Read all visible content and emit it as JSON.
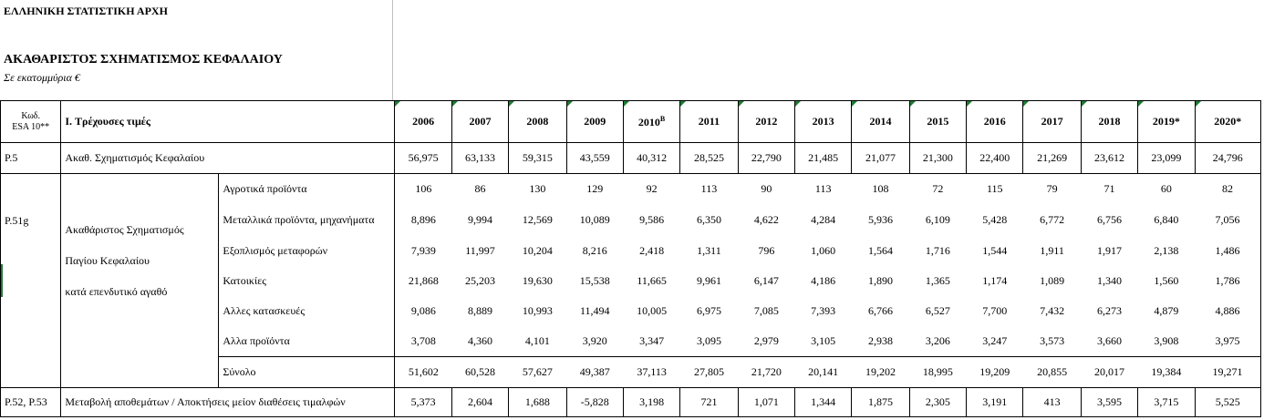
{
  "header": {
    "org": "ΕΛΛΗΝΙΚΗ ΣΤΑΤΙΣΤΙΚΗ ΑΡΧΗ",
    "title": "ΑΚΑΘΑΡΙΣΤΟΣ ΣΧΗΜΑΤΙΣΜΟΣ ΚΕΦΑΛΑΙΟΥ",
    "subtitle": "Σε εκατομμύρια €"
  },
  "table": {
    "code_header_1": "Κωδ.",
    "code_header_2": "ESA 10**",
    "section_header": "I. Τρέχουσες τιμές",
    "years": [
      "2006",
      "2007",
      "2008",
      "2009",
      "2010",
      "2011",
      "2012",
      "2013",
      "2014",
      "2015",
      "2016",
      "2017",
      "2018",
      "2019*",
      "2020*"
    ],
    "year_2010_sup": "B",
    "p5": {
      "code": "P.5",
      "label": "Ακαθ. Σχηματισμός Κεφαλαίου",
      "values": [
        "56,975",
        "63,133",
        "59,315",
        "43,559",
        "40,312",
        "28,525",
        "22,790",
        "21,485",
        "21,077",
        "21,300",
        "22,400",
        "21,269",
        "23,612",
        "23,099",
        "24,796"
      ]
    },
    "p51g": {
      "code": "P.51g",
      "group_label_1": "Ακαθάριστος Σχηματισμός",
      "group_label_2": "Παγίου Κεφαλαίου",
      "group_label_3": "κατά επενδυτικό αγαθό",
      "rows": [
        {
          "label": "Αγροτικά προϊόντα",
          "values": [
            "106",
            "86",
            "130",
            "129",
            "92",
            "113",
            "90",
            "113",
            "108",
            "72",
            "115",
            "79",
            "71",
            "60",
            "82"
          ]
        },
        {
          "label": "Μεταλλικά προϊόντα, μηχανήματα",
          "values": [
            "8,896",
            "9,994",
            "12,569",
            "10,089",
            "9,586",
            "6,350",
            "4,622",
            "4,284",
            "5,936",
            "6,109",
            "5,428",
            "6,772",
            "6,756",
            "6,840",
            "7,056"
          ]
        },
        {
          "label": "Εξοπλισμός μεταφορών",
          "values": [
            "7,939",
            "11,997",
            "10,204",
            "8,216",
            "2,418",
            "1,311",
            "796",
            "1,060",
            "1,564",
            "1,716",
            "1,544",
            "1,911",
            "1,917",
            "2,138",
            "1,486"
          ]
        },
        {
          "label": "Κατοικίες",
          "values": [
            "21,868",
            "25,203",
            "19,630",
            "15,538",
            "11,665",
            "9,961",
            "6,147",
            "4,186",
            "1,890",
            "1,365",
            "1,174",
            "1,089",
            "1,340",
            "1,560",
            "1,786"
          ]
        },
        {
          "label": "Αλλες κατασκευές",
          "values": [
            "9,086",
            "8,889",
            "10,993",
            "11,494",
            "10,005",
            "6,975",
            "7,085",
            "7,393",
            "6,766",
            "6,527",
            "7,700",
            "7,432",
            "6,273",
            "4,879",
            "4,886"
          ]
        },
        {
          "label": "Αλλα προϊόντα",
          "values": [
            "3,708",
            "4,360",
            "4,101",
            "3,920",
            "3,347",
            "3,095",
            "2,979",
            "3,105",
            "2,938",
            "3,206",
            "3,247",
            "3,573",
            "3,660",
            "3,908",
            "3,975"
          ]
        }
      ],
      "total": {
        "label": "Σύνολο",
        "values": [
          "51,602",
          "60,528",
          "57,627",
          "49,387",
          "37,113",
          "27,805",
          "21,720",
          "20,141",
          "19,202",
          "18,995",
          "19,209",
          "20,855",
          "20,017",
          "19,384",
          "19,271"
        ]
      }
    },
    "p52": {
      "code": "P.52, P.53",
      "label": "Μεταβολή αποθεμάτων / Αποκτήσεις μείον διαθέσεις τιμαλφών",
      "values": [
        "5,373",
        "2,604",
        "1,688",
        "-5,828",
        "3,198",
        "721",
        "1,071",
        "1,344",
        "1,875",
        "2,305",
        "3,191",
        "413",
        "3,595",
        "3,715",
        "5,525"
      ]
    }
  }
}
